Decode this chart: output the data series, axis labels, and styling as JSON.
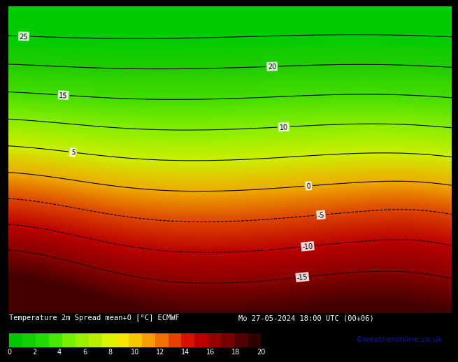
{
  "title_line1": "Temperature 2m Spread mean+0 [°C] ECMWF",
  "title_line2": "Mo 27-05-2024 18:00 UTC (00+06)",
  "colorbar_ticks": [
    0,
    2,
    4,
    6,
    8,
    10,
    12,
    14,
    16,
    18,
    20
  ],
  "colorbar_min": 0,
  "colorbar_max": 20,
  "cbar_colors": [
    "#00c800",
    "#11d200",
    "#22dc00",
    "#44e800",
    "#77f000",
    "#99f000",
    "#bbf000",
    "#ddf500",
    "#f5e800",
    "#f5c800",
    "#f5a000",
    "#f07000",
    "#e84000",
    "#d81000",
    "#bb0000",
    "#990000",
    "#770000",
    "#550000",
    "#330000"
  ],
  "map_bg": "#00cc00",
  "contour_color": "#000000",
  "contour_levels": [
    -15,
    -10,
    -5,
    0,
    5,
    10,
    15,
    20,
    25
  ],
  "credit_text": "©weatheronline.co.uk",
  "credit_color": "#1111bb",
  "title_fontsize": 7.5,
  "credit_fontsize": 8,
  "bottom_bar_height": 0.105,
  "map_colormap_nodes": [
    [
      -20,
      "#440000"
    ],
    [
      -15,
      "#880000"
    ],
    [
      -10,
      "#bb0000"
    ],
    [
      -5,
      "#dd4400"
    ],
    [
      0,
      "#eeaa00"
    ],
    [
      5,
      "#ccee00"
    ],
    [
      10,
      "#88ee00"
    ],
    [
      15,
      "#44dd00"
    ],
    [
      20,
      "#22cc00"
    ],
    [
      25,
      "#00cc00"
    ],
    [
      30,
      "#00cc00"
    ]
  ]
}
